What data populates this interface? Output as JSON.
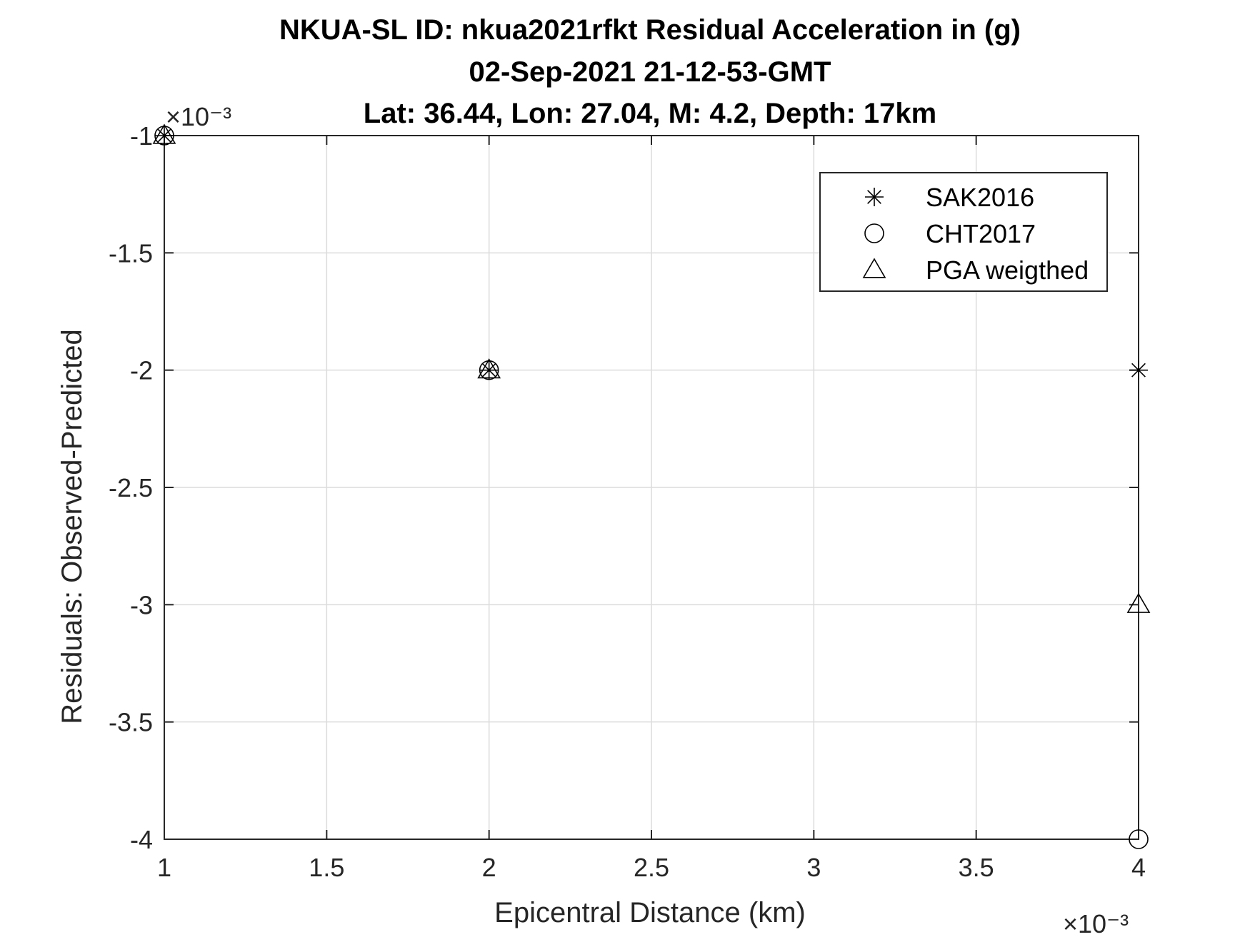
{
  "chart_data": {
    "type": "scatter",
    "title": [
      "NKUA-SL ID: nkua2021rfkt Residual Acceleration in (g)",
      "02-Sep-2021 21-12-53-GMT",
      "Lat: 36.44, Lon: 27.04, M: 4.2, Depth: 17km"
    ],
    "xlabel": "Epicentral Distance (km)",
    "ylabel": "Residuals: Observed-Predicted",
    "x_exponent_label": "×10⁻³",
    "y_exponent_label": "×10⁻³",
    "xlim": [
      0.001,
      0.004
    ],
    "ylim": [
      -0.004,
      -0.001
    ],
    "x_ticks": [
      0.001,
      0.0015,
      0.002,
      0.0025,
      0.003,
      0.0035,
      0.004
    ],
    "x_tick_labels": [
      "1",
      "1.5",
      "2",
      "2.5",
      "3",
      "3.5",
      "4"
    ],
    "y_ticks": [
      -0.001,
      -0.0015,
      -0.002,
      -0.0025,
      -0.003,
      -0.0035,
      -0.004
    ],
    "y_tick_labels": [
      "-1",
      "-1.5",
      "-2",
      "-2.5",
      "-3",
      "-3.5",
      "-4"
    ],
    "grid": true,
    "legend_position": "top-right",
    "series": [
      {
        "name": "SAK2016",
        "marker": "asterisk",
        "x": [
          0.001,
          0.002,
          0.004
        ],
        "y": [
          -0.001,
          -0.002,
          -0.002
        ]
      },
      {
        "name": "CHT2017",
        "marker": "circle",
        "x": [
          0.001,
          0.002,
          0.004
        ],
        "y": [
          -0.001,
          -0.002,
          -0.004
        ]
      },
      {
        "name": "PGA weigthed",
        "marker": "triangle",
        "x": [
          0.001,
          0.002,
          0.004
        ],
        "y": [
          -0.001,
          -0.002,
          -0.003
        ]
      }
    ],
    "colors": {
      "marker": "#000000",
      "axis": "#262626",
      "grid": "#dcdcdc"
    }
  }
}
